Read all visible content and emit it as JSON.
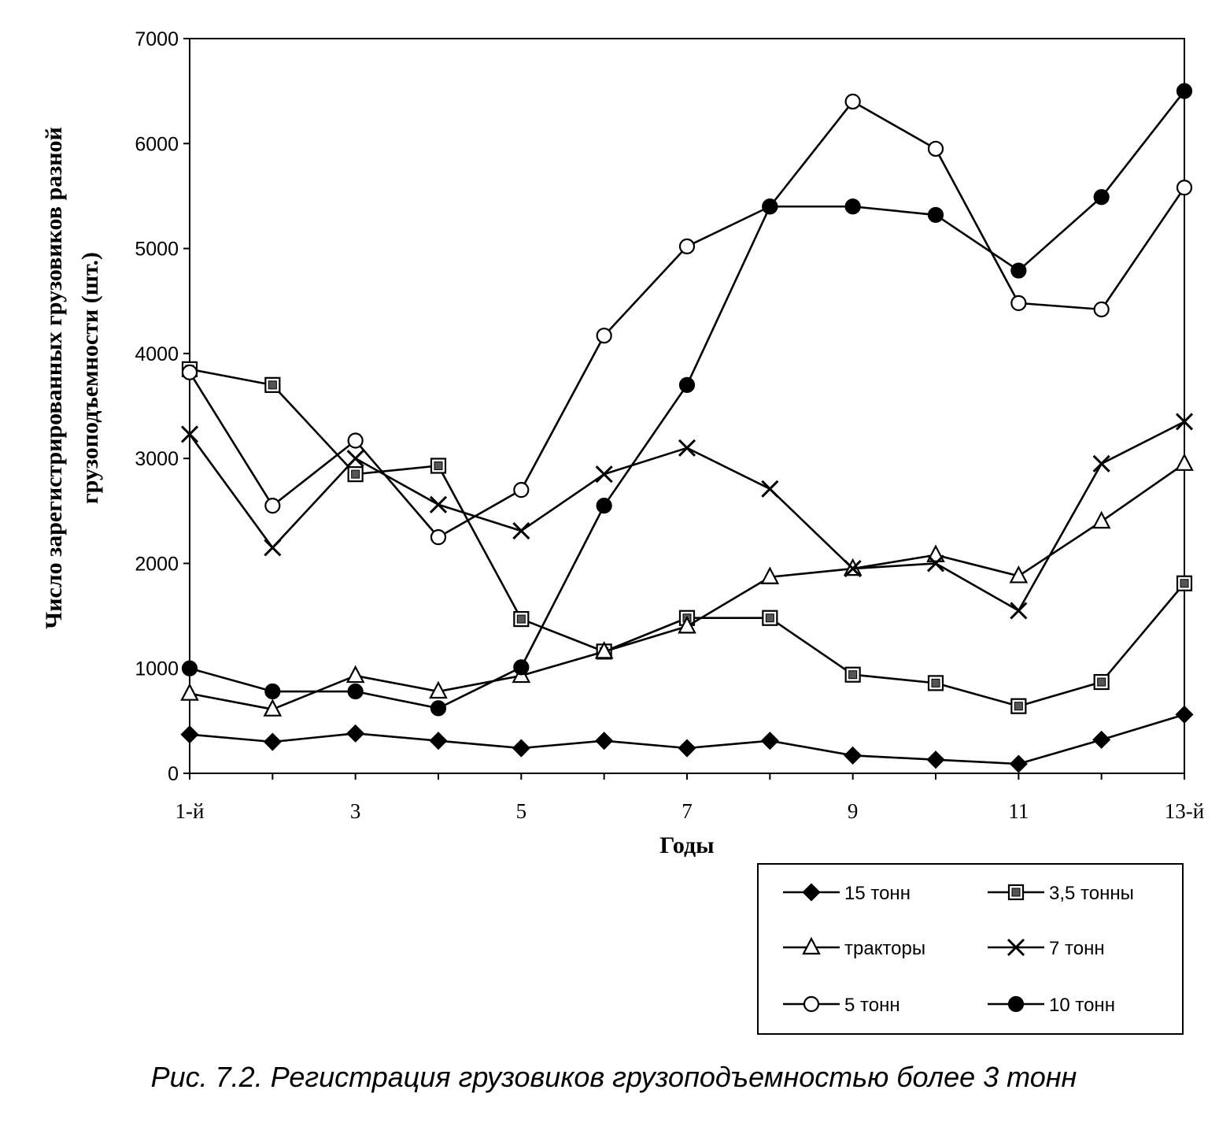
{
  "chart_data": {
    "type": "line",
    "xlabel": "Годы",
    "ylabel_lines": [
      "Число зарегистрированных грузовиков разной",
      "грузоподъемности (шт.)"
    ],
    "caption": "Рис. 7.2. Регистрация грузовиков грузоподъемностью более 3 тонн",
    "x": [
      1,
      2,
      3,
      4,
      5,
      6,
      7,
      8,
      9,
      10,
      11,
      12,
      13
    ],
    "x_tick_labels": [
      {
        "x": 1,
        "label": "1-й"
      },
      {
        "x": 3,
        "label": "3"
      },
      {
        "x": 5,
        "label": "5"
      },
      {
        "x": 7,
        "label": "7"
      },
      {
        "x": 9,
        "label": "9"
      },
      {
        "x": 11,
        "label": "11"
      },
      {
        "x": 13,
        "label": "13-й"
      }
    ],
    "ylim": [
      0,
      7000
    ],
    "y_ticks": [
      0,
      1000,
      2000,
      3000,
      4000,
      5000,
      6000,
      7000
    ],
    "grid": false,
    "legend_position": "bottom-right",
    "series": [
      {
        "name": "15 тонн",
        "marker": "diamond",
        "values": [
          370,
          300,
          380,
          310,
          240,
          310,
          240,
          310,
          170,
          130,
          90,
          320,
          560
        ]
      },
      {
        "name": "3,5 тонны",
        "marker": "square-boxed",
        "values": [
          3850,
          3700,
          2850,
          2930,
          1470,
          1160,
          1480,
          1480,
          940,
          860,
          640,
          870,
          1810
        ]
      },
      {
        "name": "тракторы",
        "marker": "triangle",
        "values": [
          760,
          610,
          930,
          780,
          930,
          1160,
          1400,
          1870,
          1950,
          2080,
          1880,
          2400,
          2950
        ]
      },
      {
        "name": "7 тонн",
        "marker": "x",
        "values": [
          3230,
          2150,
          3000,
          2560,
          2310,
          2850,
          3100,
          2710,
          1950,
          2000,
          1550,
          2950,
          3350
        ]
      },
      {
        "name": "5 тонн",
        "marker": "circle-open",
        "values": [
          3820,
          2550,
          3170,
          2250,
          2700,
          4170,
          5020,
          5400,
          6400,
          5950,
          4480,
          4420,
          5580
        ]
      },
      {
        "name": "10 тонн",
        "marker": "circle-filled",
        "values": [
          1000,
          780,
          780,
          620,
          1010,
          2550,
          3700,
          5400,
          5400,
          5320,
          4790,
          5490,
          6500
        ]
      }
    ]
  }
}
